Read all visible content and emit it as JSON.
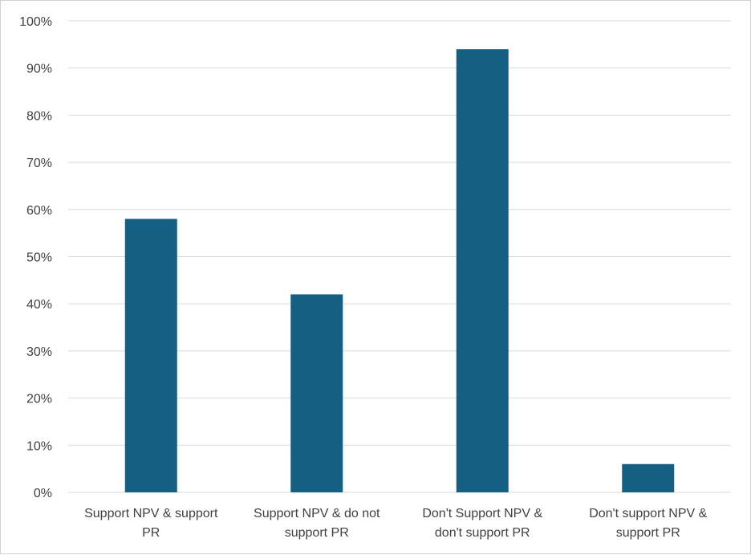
{
  "chart_data": {
    "type": "bar",
    "title": "",
    "xlabel": "",
    "ylabel": "",
    "categories": [
      [
        "Support NPV & support",
        "PR"
      ],
      [
        "Support NPV & do not",
        "support PR"
      ],
      [
        "Don't Support NPV &",
        "don't support PR"
      ],
      [
        "Don't support NPV &",
        "support PR"
      ]
    ],
    "values": [
      58,
      42,
      94,
      6
    ],
    "ylim": [
      0,
      100
    ],
    "yticks": [
      0,
      10,
      20,
      30,
      40,
      50,
      60,
      70,
      80,
      90,
      100
    ],
    "ytick_format": "%",
    "bar_color": "#156082",
    "grid": true,
    "legend": "none"
  }
}
